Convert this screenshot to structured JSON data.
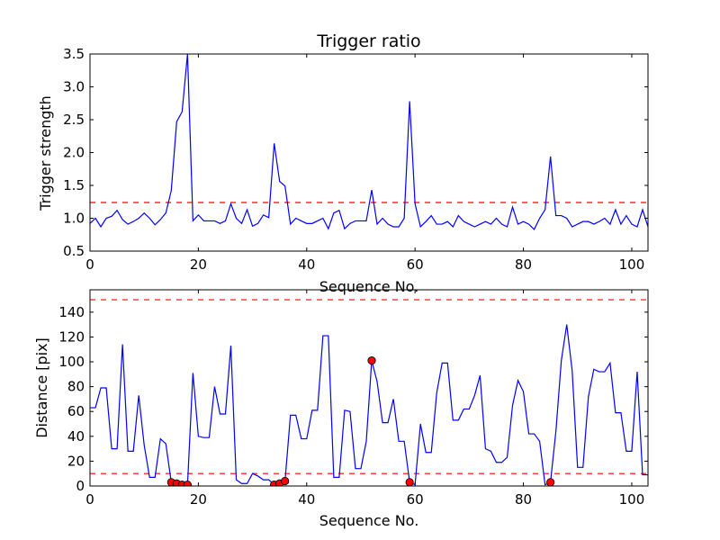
{
  "chart_data": [
    {
      "type": "line",
      "title": "Trigger ratio",
      "xlabel": "Sequence No.",
      "ylabel": "Trigger strength",
      "xlim": [
        0,
        103
      ],
      "ylim": [
        0.5,
        3.5
      ],
      "xticks": [
        0,
        20,
        40,
        60,
        80,
        100
      ],
      "xtick_labels": [
        "0",
        "20",
        "40",
        "60",
        "80",
        "100"
      ],
      "yticks": [
        0.5,
        1.0,
        1.5,
        2.0,
        2.5,
        3.0,
        3.5
      ],
      "ytick_labels": [
        "0.5",
        "1.0",
        "1.5",
        "2.0",
        "2.5",
        "3.0",
        "3.5"
      ],
      "line_color": "#0000ff",
      "threshold": 1.24,
      "threshold_color": "#ff0000",
      "series": [
        {
          "name": "trigger strength",
          "values": [
            0.92,
            1.0,
            0.87,
            1.0,
            1.03,
            1.12,
            0.98,
            0.91,
            0.95,
            1.0,
            1.08,
            1.0,
            0.9,
            0.98,
            1.08,
            1.42,
            2.47,
            2.62,
            3.5,
            0.96,
            1.05,
            0.96,
            0.96,
            0.96,
            0.92,
            0.96,
            1.22,
            1.0,
            0.92,
            1.13,
            0.88,
            0.92,
            1.05,
            1.01,
            2.14,
            1.56,
            1.49,
            0.91,
            1.0,
            0.96,
            0.92,
            0.92,
            0.96,
            1.0,
            0.84,
            1.08,
            1.12,
            0.84,
            0.92,
            0.96,
            0.96,
            0.96,
            1.43,
            0.91,
            1.0,
            0.91,
            0.87,
            0.87,
            1.0,
            2.78,
            1.22,
            0.87,
            0.95,
            1.04,
            0.91,
            0.91,
            0.95,
            0.87,
            1.04,
            0.95,
            0.91,
            0.87,
            0.91,
            0.95,
            0.91,
            1.0,
            0.91,
            0.87,
            1.17,
            0.91,
            0.95,
            0.91,
            0.83,
            1.0,
            1.13,
            1.94,
            1.04,
            1.04,
            1.0,
            0.87,
            0.91,
            0.95,
            0.95,
            0.91,
            0.95,
            1.0,
            0.91,
            1.13,
            0.91,
            1.04,
            0.91,
            0.87,
            1.13,
            0.87
          ]
        }
      ]
    },
    {
      "type": "line",
      "title": "",
      "xlabel": "Sequence No.",
      "ylabel": "Distance [pix]",
      "xlim": [
        0,
        103
      ],
      "ylim": [
        0,
        158
      ],
      "xticks": [
        0,
        20,
        40,
        60,
        80,
        100
      ],
      "xtick_labels": [
        "0",
        "20",
        "40",
        "60",
        "80",
        "100"
      ],
      "yticks": [
        0,
        20,
        40,
        60,
        80,
        100,
        120,
        140
      ],
      "ytick_labels": [
        "0",
        "20",
        "40",
        "60",
        "80",
        "100",
        "120",
        "140"
      ],
      "line_color": "#0000ff",
      "thresholds": [
        150,
        10
      ],
      "threshold_color": "#ff0000",
      "marker_color": "#ff0000",
      "series": [
        {
          "name": "distance",
          "values": [
            63,
            63,
            79,
            79,
            30,
            30,
            114,
            28,
            28,
            73,
            33,
            7,
            7,
            38,
            34,
            3,
            2,
            1,
            1,
            91,
            40,
            39,
            39,
            80,
            58,
            58,
            113,
            5,
            2,
            2,
            10,
            8,
            5,
            5,
            1,
            2,
            4,
            57,
            57,
            38,
            38,
            61,
            61,
            121,
            121,
            7,
            7,
            61,
            60,
            14,
            14,
            36,
            101,
            84,
            51,
            51,
            70,
            36,
            36,
            3,
            1,
            50,
            27,
            27,
            75,
            99,
            99,
            53,
            53,
            62,
            62,
            73,
            89,
            30,
            28,
            19,
            19,
            23,
            65,
            85,
            76,
            42,
            42,
            36,
            1,
            3,
            44,
            101,
            130,
            93,
            15,
            15,
            72,
            94,
            92,
            92,
            99,
            59,
            59,
            28,
            28,
            92,
            9,
            9
          ]
        }
      ],
      "markers": [
        {
          "x": 15,
          "y": 3
        },
        {
          "x": 16,
          "y": 2
        },
        {
          "x": 17,
          "y": 1
        },
        {
          "x": 18,
          "y": 1
        },
        {
          "x": 34,
          "y": 1
        },
        {
          "x": 35,
          "y": 2
        },
        {
          "x": 36,
          "y": 4
        },
        {
          "x": 52,
          "y": 101
        },
        {
          "x": 59,
          "y": 3
        },
        {
          "x": 85,
          "y": 3
        }
      ]
    }
  ]
}
